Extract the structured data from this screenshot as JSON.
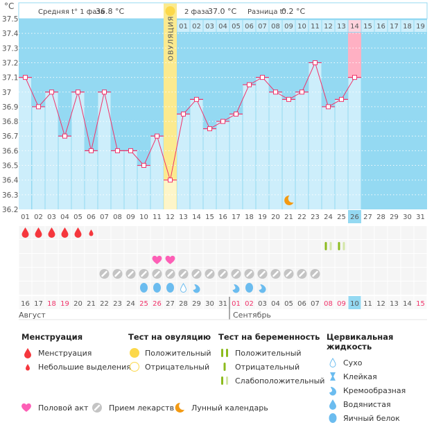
{
  "info": {
    "phase1_label": "Средняя t° 1 фаза",
    "phase1_value": "36.8 °C",
    "phase2_label": "2 фаза",
    "phase2_value": "37.0 °C",
    "diff_label": "Разница t°",
    "diff_value": "0.2 °C",
    "ovulation_label": "ОВУЛЯЦИЯ"
  },
  "colors": {
    "bg": "#94d9f2",
    "bar": "#cdeefb",
    "line": "#f0336a",
    "ovulation": "#fbea8f",
    "today": "#ffb0c3",
    "weekend": "#f0336a"
  },
  "chart_data": {
    "type": "line",
    "yunit": "°C",
    "ylim": [
      36.2,
      37.5
    ],
    "yticks": [
      "37.5",
      "37.4",
      "37.3",
      "37.2",
      "37.1",
      "37",
      "36.9",
      "36.8",
      "36.7",
      "36.6",
      "36.5",
      "36.4",
      "36.3",
      "36.2"
    ],
    "x": [
      "01",
      "02",
      "03",
      "04",
      "05",
      "06",
      "07",
      "08",
      "09",
      "10",
      "11",
      "12",
      "13",
      "14",
      "15",
      "16",
      "17",
      "18",
      "19",
      "20",
      "21",
      "22",
      "23",
      "24",
      "25",
      "26",
      "27",
      "28",
      "29",
      "30",
      "31"
    ],
    "temperatures": [
      37.1,
      36.9,
      37.0,
      36.7,
      37.0,
      36.6,
      37.0,
      36.6,
      36.6,
      36.5,
      36.7,
      36.4,
      36.85,
      36.95,
      36.75,
      36.8,
      36.85,
      37.05,
      37.1,
      37.0,
      36.95,
      37.0,
      37.2,
      36.9,
      36.95,
      37.1
    ],
    "ovulation_day": 12,
    "current_day": 26,
    "phase2_days": [
      "01",
      "02",
      "03",
      "04",
      "05",
      "06",
      "07",
      "08",
      "09",
      "10",
      "11",
      "12",
      "13",
      "14",
      "15",
      "16",
      "17",
      "18",
      "19"
    ],
    "phase2_highlight": "14",
    "lunar_day": 21,
    "grid": true
  },
  "calendar": {
    "dates": [
      "16",
      "17",
      "18",
      "19",
      "20",
      "21",
      "22",
      "23",
      "24",
      "25",
      "26",
      "27",
      "28",
      "29",
      "30",
      "31",
      "01",
      "02",
      "03",
      "04",
      "05",
      "06",
      "07",
      "08",
      "09",
      "10",
      "11",
      "12",
      "13",
      "14",
      "15"
    ],
    "weekend_days": [
      3,
      4,
      10,
      11,
      17,
      18,
      24,
      25,
      31
    ],
    "month1": "Август",
    "month2": "Сентябрь",
    "today_index": 26
  },
  "markers": {
    "menstruation": {
      "1": "full",
      "2": "full",
      "3": "full",
      "4": "full",
      "5": "full",
      "6": "light"
    },
    "pregnancy_test": {
      "24": "weak",
      "25": "weak"
    },
    "intercourse": [
      11,
      12
    ],
    "medication": [
      7,
      8,
      9,
      10,
      11,
      12,
      13,
      14,
      15,
      16,
      17,
      18,
      19,
      20,
      21,
      22,
      23
    ],
    "cervical": {
      "10": "egg",
      "11": "egg",
      "12": "egg",
      "13": "dry",
      "14": "creamy",
      "17": "creamy",
      "18": "egg",
      "19": "creamy"
    }
  },
  "legend": {
    "menstruation": {
      "title": "Менструация",
      "items": [
        "Менструация",
        "Небольшие выделения"
      ]
    },
    "ovulation_test": {
      "title": "Тест на овуляцию",
      "items": [
        "Положительный",
        "Отрицательный"
      ]
    },
    "pregnancy_test": {
      "title": "Тест на беременность",
      "items": [
        "Положительный",
        "Отрицательный",
        "Слабоположительный"
      ]
    },
    "cervical": {
      "title": "Цервикальная жидкость",
      "items": [
        "Сухо",
        "Клейкая",
        "Кремообразная",
        "Водянистая",
        "Яичный белок"
      ]
    },
    "bottom": [
      "Половой акт",
      "Прием лекарств",
      "Лунный календарь"
    ]
  }
}
